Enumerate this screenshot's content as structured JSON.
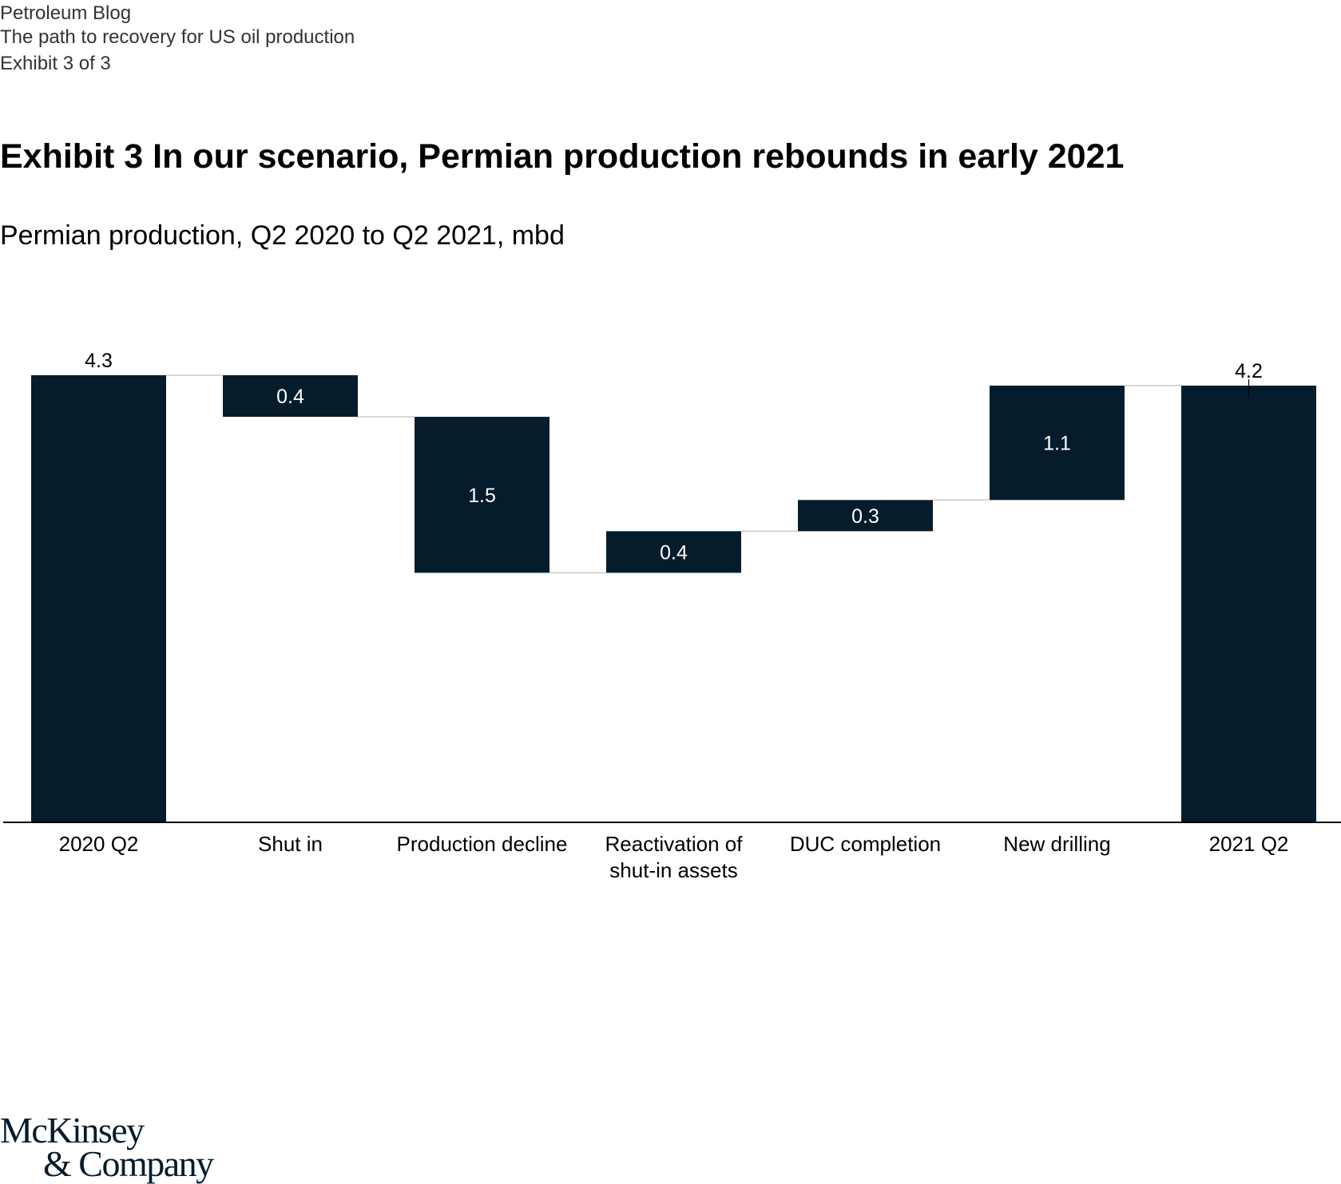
{
  "header": {
    "blog": "Petroleum Blog",
    "article": "The path to recovery for US oil production",
    "exhibit": "Exhibit 3 of 3"
  },
  "logo": {
    "line1": "McKinsey",
    "line2": "& Company"
  },
  "colors": {
    "bar": "#051c2c",
    "connector": "#c8c8c8",
    "axis": "#000000",
    "label_inside": "#ffffff",
    "label_outside": "#000000"
  },
  "chart_data": {
    "type": "waterfall",
    "title": "Exhibit 3 In our scenario, Permian production rebounds in early 2021",
    "subtitle": "Permian production, Q2 2020 to Q2 2021, mbd",
    "ylim": [
      0,
      4.3
    ],
    "steps": [
      {
        "category": [
          "2020 Q2"
        ],
        "value": 4.3,
        "kind": "total",
        "label": "4.3"
      },
      {
        "category": [
          "Shut in"
        ],
        "value": -0.4,
        "kind": "delta",
        "label": "0.4"
      },
      {
        "category": [
          "Production decline"
        ],
        "value": -1.5,
        "kind": "delta",
        "label": "1.5"
      },
      {
        "category": [
          "Reactivation of",
          "shut-in assets"
        ],
        "value": 0.4,
        "kind": "delta",
        "label": "0.4"
      },
      {
        "category": [
          "DUC completion"
        ],
        "value": 0.3,
        "kind": "delta",
        "label": "0.3"
      },
      {
        "category": [
          "New drilling"
        ],
        "value": 1.1,
        "kind": "delta",
        "label": "1.1"
      },
      {
        "category": [
          "2021 Q2"
        ],
        "value": 4.2,
        "kind": "total",
        "label": "4.2"
      }
    ]
  }
}
